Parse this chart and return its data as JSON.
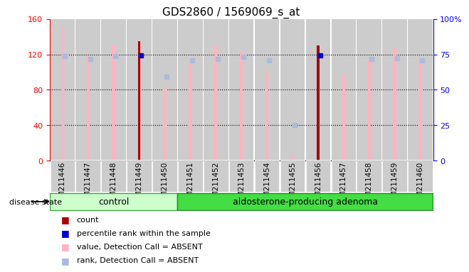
{
  "title": "GDS2860 / 1569069_s_at",
  "samples": [
    "GSM211446",
    "GSM211447",
    "GSM211448",
    "GSM211449",
    "GSM211450",
    "GSM211451",
    "GSM211452",
    "GSM211453",
    "GSM211454",
    "GSM211455",
    "GSM211456",
    "GSM211457",
    "GSM211458",
    "GSM211459",
    "GSM211460"
  ],
  "value_bars": [
    152,
    119,
    131,
    135,
    83,
    114,
    131,
    124,
    101,
    8,
    130,
    97,
    113,
    127,
    113
  ],
  "rank_bars": [
    118,
    115,
    118,
    null,
    95,
    113,
    115,
    117,
    113,
    40,
    null,
    null,
    115,
    116,
    113
  ],
  "count_bars": [
    null,
    null,
    null,
    135,
    null,
    null,
    null,
    null,
    null,
    null,
    130,
    null,
    null,
    null,
    null
  ],
  "percentile_bars": [
    null,
    null,
    null,
    119,
    null,
    null,
    null,
    null,
    null,
    null,
    119,
    null,
    null,
    null,
    null
  ],
  "control_count": 5,
  "adenoma_count": 10,
  "ylim": [
    0,
    160
  ],
  "y2lim": [
    0,
    100
  ],
  "yticks": [
    0,
    40,
    80,
    120,
    160
  ],
  "y2ticks": [
    0,
    25,
    50,
    75,
    100
  ],
  "y2ticklabels": [
    "0",
    "25",
    "50",
    "75",
    "100%"
  ],
  "color_value": "#ffb3c1",
  "color_rank": "#aabbdd",
  "color_count": "#aa0000",
  "color_percentile": "#0000cc",
  "color_control_bg": "#ccffcc",
  "color_adenoma_bg": "#44dd44",
  "color_bar_bg": "#cccccc",
  "legend_items": [
    {
      "label": "count",
      "color": "#aa0000"
    },
    {
      "label": "percentile rank within the sample",
      "color": "#0000cc"
    },
    {
      "label": "value, Detection Call = ABSENT",
      "color": "#ffb3c1"
    },
    {
      "label": "rank, Detection Call = ABSENT",
      "color": "#aabbdd"
    }
  ]
}
